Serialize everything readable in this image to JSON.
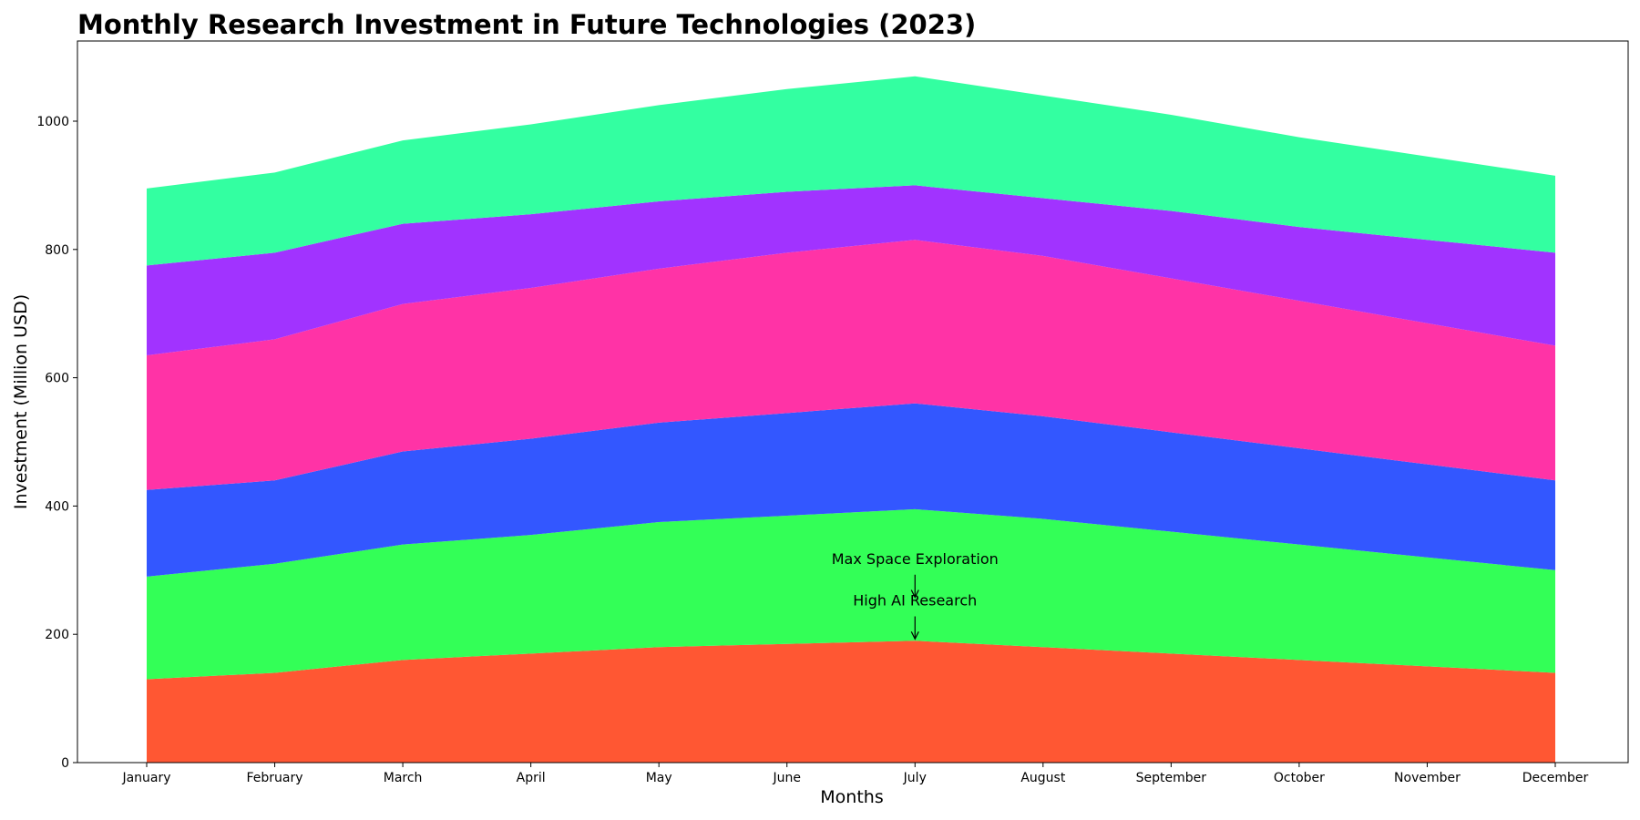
{
  "chart_data": {
    "type": "area",
    "stacked": true,
    "title": "Monthly Research Investment in Future Technologies (2023)",
    "xlabel": "Months",
    "ylabel": "Investment (Million USD)",
    "ylim": [
      0,
      1125
    ],
    "yticks": [
      0,
      200,
      400,
      600,
      800,
      1000
    ],
    "grid": false,
    "legend": "none",
    "categories": [
      "January",
      "February",
      "March",
      "April",
      "May",
      "June",
      "July",
      "August",
      "September",
      "October",
      "November",
      "December"
    ],
    "series": [
      {
        "color": "#ff5733",
        "values": [
          130,
          140,
          160,
          170,
          180,
          185,
          190,
          180,
          170,
          160,
          150,
          140
        ]
      },
      {
        "color": "#33ff57",
        "values": [
          160,
          170,
          180,
          185,
          195,
          200,
          205,
          200,
          190,
          180,
          170,
          160
        ]
      },
      {
        "color": "#3357ff",
        "values": [
          135,
          130,
          145,
          150,
          155,
          160,
          165,
          160,
          155,
          150,
          145,
          140
        ]
      },
      {
        "color": "#ff33a6",
        "values": [
          210,
          220,
          230,
          235,
          240,
          250,
          255,
          250,
          240,
          230,
          220,
          210
        ]
      },
      {
        "color": "#a133ff",
        "values": [
          140,
          135,
          125,
          115,
          105,
          95,
          85,
          90,
          105,
          115,
          130,
          145
        ]
      },
      {
        "color": "#33ffa1",
        "values": [
          120,
          125,
          130,
          140,
          150,
          160,
          170,
          160,
          150,
          140,
          130,
          120
        ]
      }
    ],
    "annotations": [
      {
        "text": "High AI Research",
        "x": "July",
        "y": 190,
        "text_y": 245
      },
      {
        "text": "Max Space Exploration",
        "x": "July",
        "y": 255,
        "text_y": 310
      }
    ]
  }
}
